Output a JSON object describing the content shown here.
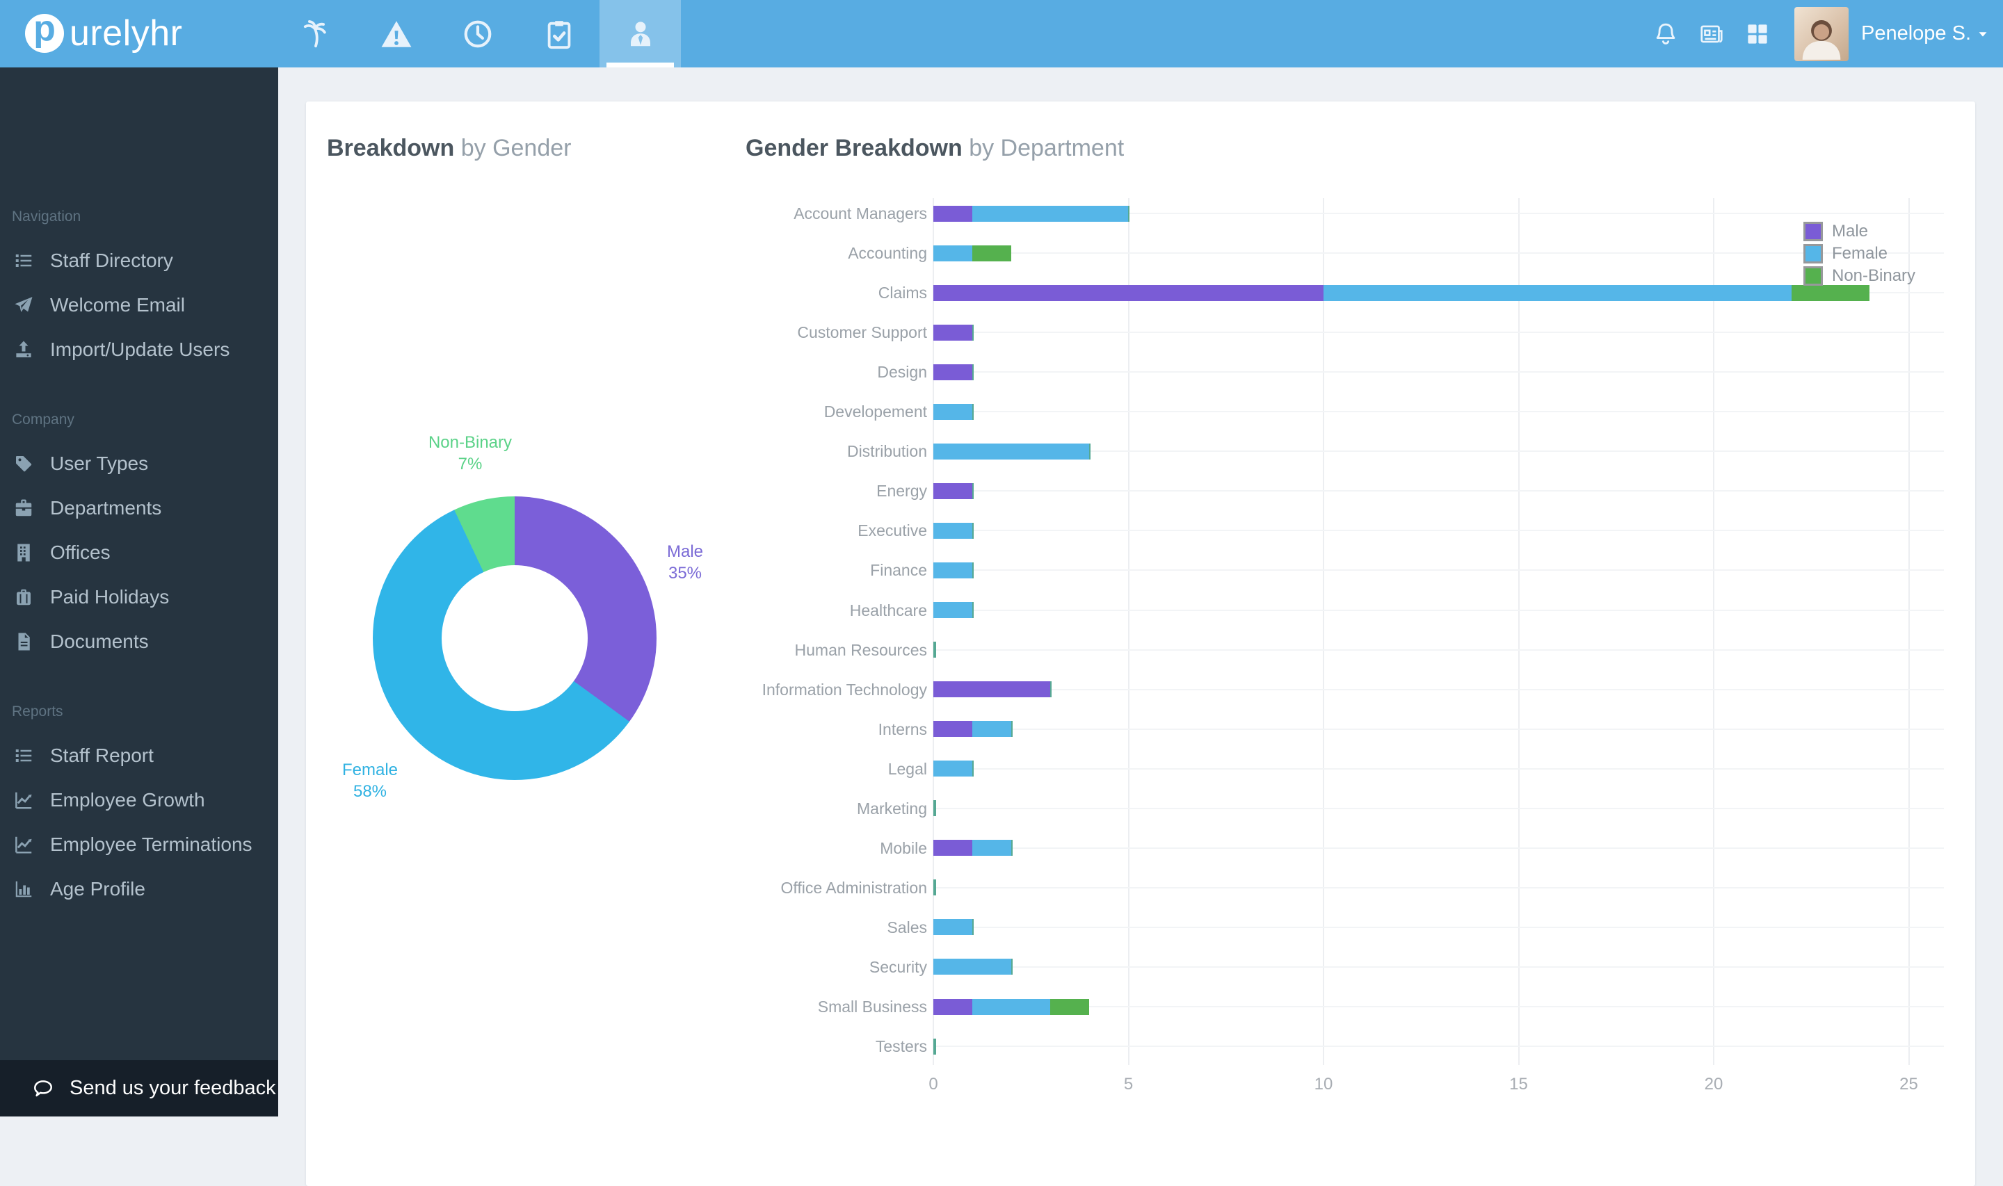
{
  "header": {
    "logo": {
      "letter": "p",
      "text": "urelyhr"
    },
    "tabs": [
      {
        "icon": "palm-tree",
        "active": false
      },
      {
        "icon": "warning-triangle",
        "active": false
      },
      {
        "icon": "clock",
        "active": false
      },
      {
        "icon": "clipboard-check",
        "active": false
      },
      {
        "icon": "user",
        "active": true
      }
    ],
    "actions": [
      {
        "icon": "bell"
      },
      {
        "icon": "newspaper"
      },
      {
        "icon": "grid"
      }
    ],
    "user": {
      "name": "Penelope S."
    }
  },
  "sidebar": {
    "sections": [
      {
        "label": "Navigation",
        "items": [
          {
            "label": "Staff Directory",
            "icon": "list"
          },
          {
            "label": "Welcome Email",
            "icon": "paper-plane"
          },
          {
            "label": "Import/Update Users",
            "icon": "upload"
          }
        ]
      },
      {
        "label": "Company",
        "items": [
          {
            "label": "User Types",
            "icon": "tag"
          },
          {
            "label": "Departments",
            "icon": "briefcase"
          },
          {
            "label": "Offices",
            "icon": "building"
          },
          {
            "label": "Paid Holidays",
            "icon": "suitcase"
          },
          {
            "label": "Documents",
            "icon": "document"
          }
        ]
      },
      {
        "label": "Reports",
        "items": [
          {
            "label": "Staff Report",
            "icon": "list"
          },
          {
            "label": "Employee Growth",
            "icon": "chart-line"
          },
          {
            "label": "Employee Terminations",
            "icon": "chart-line"
          },
          {
            "label": "Age Profile",
            "icon": "bar-chart"
          }
        ]
      }
    ],
    "feedback": "Send us your feedback"
  },
  "chart_data": [
    {
      "type": "pie",
      "title": "Breakdown by Gender",
      "title_bold": "Breakdown",
      "title_light": " by Gender",
      "labels": [
        "Male",
        "Female",
        "Non-Binary"
      ],
      "values": [
        35,
        58,
        7
      ],
      "pct_labels": [
        "35%",
        "58%",
        "7%"
      ],
      "unit": "percent",
      "donut": true,
      "colors": [
        "#7b5fd9",
        "#30b5e8",
        "#5fdc8e"
      ],
      "label_colors": [
        "#7b6bd6",
        "#30b2e2",
        "#5bd288"
      ]
    },
    {
      "type": "bar",
      "orientation": "horizontal",
      "stacked": true,
      "title": "Gender Breakdown by Department",
      "title_bold": "Gender Breakdown",
      "title_light": " by Department",
      "categories": [
        "Account Managers",
        "Accounting",
        "Claims",
        "Customer Support",
        "Design",
        "Developement",
        "Distribution",
        "Energy",
        "Executive",
        "Finance",
        "Healthcare",
        "Human Resources",
        "Information Technology",
        "Interns",
        "Legal",
        "Marketing",
        "Mobile",
        "Office Administration",
        "Sales",
        "Security",
        "Small Business",
        "Testers"
      ],
      "series": [
        {
          "name": "Male",
          "color": "#7a5cd6",
          "values": [
            1,
            0,
            10,
            1,
            1,
            0,
            0,
            1,
            0,
            0,
            0,
            0,
            3,
            1,
            0,
            0,
            1,
            0,
            0,
            0,
            1,
            0
          ]
        },
        {
          "name": "Female",
          "color": "#55b6e8",
          "values": [
            4,
            1,
            12,
            0,
            0,
            1,
            4,
            0,
            1,
            1,
            1,
            0,
            0,
            1,
            1,
            0,
            1,
            0,
            1,
            2,
            2,
            0
          ]
        },
        {
          "name": "Non-Binary",
          "color": "#55b14e",
          "values": [
            0,
            1,
            2,
            0,
            0,
            0,
            0,
            0,
            0,
            0,
            0,
            0,
            0,
            0,
            0,
            0,
            0,
            0,
            0,
            0,
            1,
            0
          ]
        }
      ],
      "xlim": [
        0,
        25
      ],
      "x_ticks": [
        0,
        5,
        10,
        15,
        20,
        25
      ],
      "grid": true,
      "legend_position": "top-right"
    }
  ],
  "colors": {
    "topbar": "#58ace2",
    "sidebar": "#263440",
    "feedback_bar": "#161f29",
    "card": "#ffffff",
    "page_bg": "#edf0f4",
    "zero_sliver": "#55a893"
  }
}
